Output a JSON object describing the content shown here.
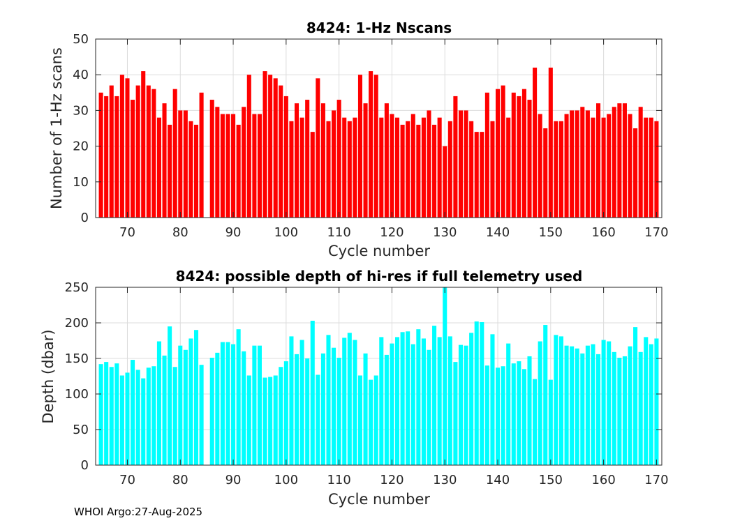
{
  "chart_data": [
    {
      "type": "bar",
      "title": "8424: 1-Hz Nscans",
      "xlabel": "Cycle number",
      "ylabel": "Number of 1-Hz scans",
      "xlim": [
        64,
        171
      ],
      "ylim": [
        0,
        50
      ],
      "xticks": [
        70,
        80,
        90,
        100,
        110,
        120,
        130,
        140,
        150,
        160,
        170
      ],
      "yticks": [
        0,
        10,
        20,
        30,
        40,
        50
      ],
      "grid": true,
      "bar_color": "#ff0000",
      "x": [
        65,
        66,
        67,
        68,
        69,
        70,
        71,
        72,
        73,
        74,
        75,
        76,
        77,
        78,
        79,
        80,
        81,
        82,
        83,
        84,
        85,
        86,
        87,
        88,
        89,
        90,
        91,
        92,
        93,
        94,
        95,
        96,
        97,
        98,
        99,
        100,
        101,
        102,
        103,
        104,
        105,
        106,
        107,
        108,
        109,
        110,
        111,
        112,
        113,
        114,
        115,
        116,
        117,
        118,
        119,
        120,
        121,
        122,
        123,
        124,
        125,
        126,
        127,
        128,
        129,
        130,
        131,
        132,
        133,
        134,
        135,
        136,
        137,
        138,
        139,
        140,
        141,
        142,
        143,
        144,
        145,
        146,
        147,
        148,
        149,
        150,
        151,
        152,
        153,
        154,
        155,
        156,
        157,
        158,
        159,
        160,
        161,
        162,
        163,
        164,
        165,
        166,
        167,
        168,
        169,
        170
      ],
      "values": [
        35,
        34,
        37,
        34,
        40,
        39,
        33,
        37,
        41,
        37,
        36,
        28,
        32,
        26,
        36,
        30,
        30,
        27,
        26,
        35,
        null,
        33,
        31,
        29,
        29,
        29,
        26,
        31,
        40,
        29,
        29,
        41,
        40,
        39,
        37,
        34,
        27,
        32,
        28,
        33,
        24,
        39,
        32,
        27,
        30,
        33,
        28,
        27,
        28,
        40,
        32,
        41,
        40,
        28,
        32,
        29,
        28,
        26,
        27,
        29,
        26,
        28,
        30,
        26,
        28,
        20,
        27,
        34,
        30,
        30,
        27,
        24,
        24,
        35,
        27,
        36,
        37,
        28,
        35,
        34,
        36,
        33,
        42,
        29,
        25,
        42,
        27,
        27,
        29,
        30,
        30,
        31,
        30,
        28,
        32,
        28,
        29,
        31,
        32,
        32,
        29,
        25,
        31,
        28,
        28,
        27
      ]
    },
    {
      "type": "bar",
      "title": "8424: possible depth of hi-res if full telemetry used",
      "xlabel": "Cycle number",
      "ylabel": "Depth (dbar)",
      "xlim": [
        64,
        171
      ],
      "ylim": [
        0,
        250
      ],
      "xticks": [
        70,
        80,
        90,
        100,
        110,
        120,
        130,
        140,
        150,
        160,
        170
      ],
      "yticks": [
        0,
        50,
        100,
        150,
        200,
        250
      ],
      "grid": true,
      "bar_color": "#00ffff",
      "x": [
        65,
        66,
        67,
        68,
        69,
        70,
        71,
        72,
        73,
        74,
        75,
        76,
        77,
        78,
        79,
        80,
        81,
        82,
        83,
        84,
        85,
        86,
        87,
        88,
        89,
        90,
        91,
        92,
        93,
        94,
        95,
        96,
        97,
        98,
        99,
        100,
        101,
        102,
        103,
        104,
        105,
        106,
        107,
        108,
        109,
        110,
        111,
        112,
        113,
        114,
        115,
        116,
        117,
        118,
        119,
        120,
        121,
        122,
        123,
        124,
        125,
        126,
        127,
        128,
        129,
        130,
        131,
        132,
        133,
        134,
        135,
        136,
        137,
        138,
        139,
        140,
        141,
        142,
        143,
        144,
        145,
        146,
        147,
        148,
        149,
        150,
        151,
        152,
        153,
        154,
        155,
        156,
        157,
        158,
        159,
        160,
        161,
        162,
        163,
        164,
        165,
        166,
        167,
        168,
        169,
        170
      ],
      "values": [
        142,
        145,
        138,
        143,
        126,
        130,
        148,
        134,
        122,
        137,
        139,
        174,
        154,
        195,
        138,
        168,
        162,
        178,
        190,
        141,
        null,
        151,
        158,
        173,
        173,
        170,
        191,
        160,
        126,
        168,
        168,
        123,
        124,
        126,
        138,
        146,
        181,
        156,
        176,
        150,
        203,
        127,
        157,
        183,
        165,
        151,
        179,
        186,
        176,
        126,
        157,
        120,
        126,
        180,
        155,
        171,
        180,
        187,
        188,
        170,
        191,
        178,
        162,
        196,
        180,
        250,
        181,
        145,
        169,
        168,
        186,
        202,
        201,
        140,
        184,
        137,
        139,
        171,
        143,
        146,
        135,
        153,
        121,
        174,
        197,
        120,
        183,
        181,
        168,
        167,
        164,
        157,
        168,
        170,
        156,
        176,
        174,
        159,
        151,
        153,
        167,
        194,
        159,
        180,
        170,
        178
      ]
    }
  ],
  "footer": {
    "text": "WHOI Argo:27-Aug-2025"
  }
}
